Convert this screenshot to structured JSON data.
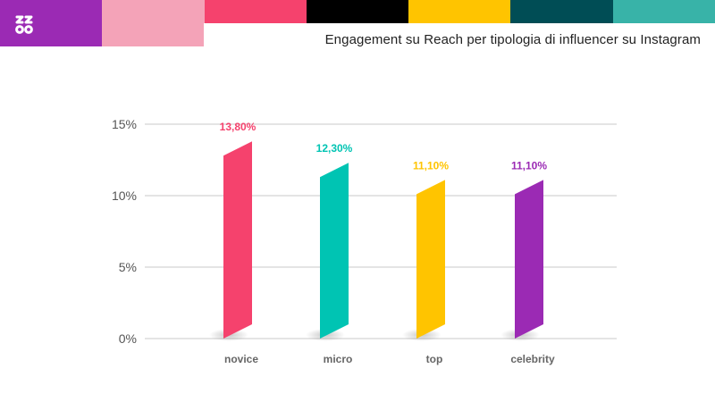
{
  "header": {
    "title": "Engagement su Reach per tipologia di influencer su Instagram",
    "logo_icon": "zoo-logo-icon",
    "stripe_colors": [
      "#9b2ab4",
      "#f4a3b8",
      "#f5426d",
      "#000000",
      "#ffc400",
      "#004d55",
      "#38b3a8"
    ]
  },
  "chart_data": {
    "type": "bar",
    "title": "",
    "xlabel": "",
    "ylabel": "",
    "categories": [
      "novice",
      "micro",
      "top",
      "celebrity"
    ],
    "values": [
      13.8,
      12.3,
      11.1,
      11.1
    ],
    "value_labels": [
      "13,80%",
      "12,30%",
      "11,10%",
      "11,10%"
    ],
    "colors": [
      "#f5426d",
      "#00c4b3",
      "#ffc400",
      "#9b2ab4"
    ],
    "ylim": [
      0,
      15
    ],
    "yticks": [
      0,
      5,
      10,
      15
    ],
    "ytick_labels": [
      "0%",
      "5%",
      "10%",
      "15%"
    ],
    "grid": true,
    "legend": "none"
  }
}
